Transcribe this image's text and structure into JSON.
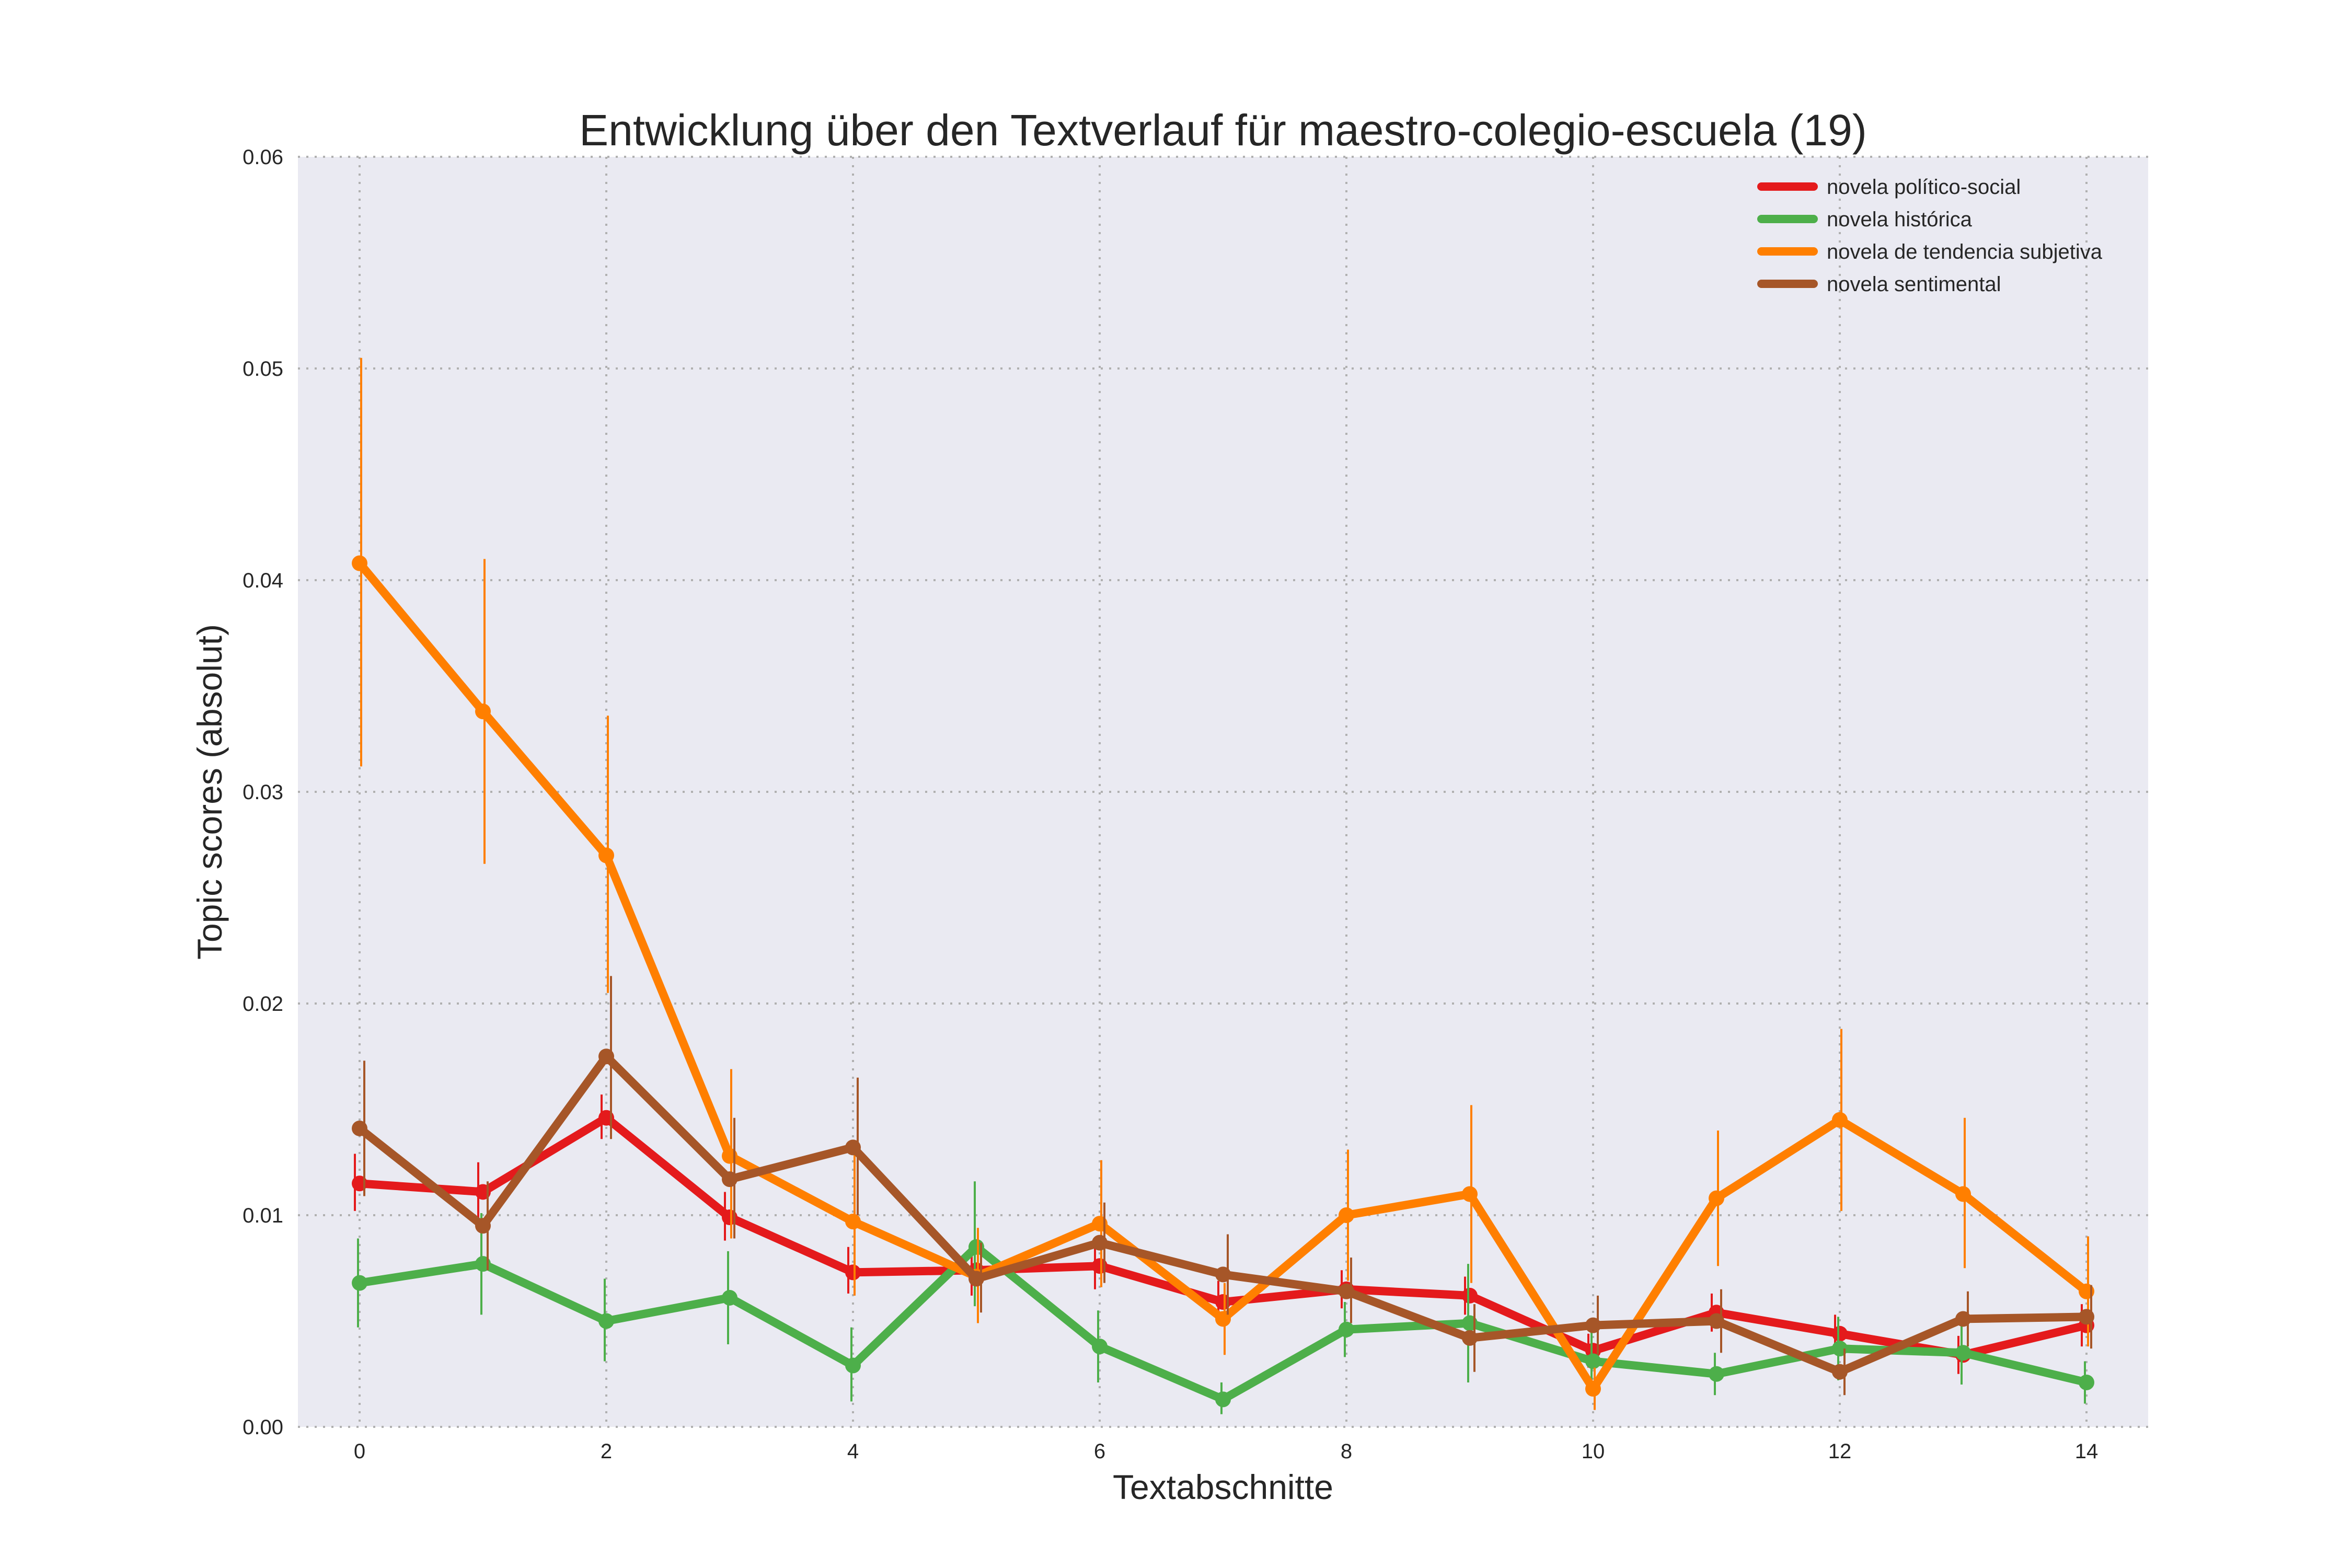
{
  "chart_data": {
    "type": "line",
    "title": "Entwicklung über den Textverlauf für maestro-colegio-escuela (19)",
    "xlabel": "Textabschnitte",
    "ylabel": "Topic scores (absolut)",
    "xlim": [
      -0.5,
      14.5
    ],
    "ylim": [
      0,
      0.06
    ],
    "x": [
      0,
      1,
      2,
      3,
      4,
      5,
      6,
      7,
      8,
      9,
      10,
      11,
      12,
      13,
      14
    ],
    "x_ticks": [
      0,
      2,
      4,
      6,
      8,
      10,
      12,
      14
    ],
    "x_tick_labels": [
      "0",
      "2",
      "4",
      "6",
      "8",
      "10",
      "12",
      "14"
    ],
    "y_ticks": [
      0,
      0.01,
      0.02,
      0.03,
      0.04,
      0.05,
      0.06
    ],
    "y_tick_labels": [
      "0.00",
      "0.01",
      "0.02",
      "0.03",
      "0.04",
      "0.05",
      "0.06"
    ],
    "grid": true,
    "legend_position": "top-right",
    "series": [
      {
        "name": "novela político-social",
        "color": "#e41a1c",
        "values": [
          0.0115,
          0.0111,
          0.0146,
          0.0099,
          0.0073,
          0.0074,
          0.0076,
          0.0059,
          0.0065,
          0.0062,
          0.0036,
          0.0054,
          0.0044,
          0.0034,
          0.0048
        ],
        "err_low": [
          0.0102,
          0.0097,
          0.0136,
          0.0088,
          0.0063,
          0.0062,
          0.0065,
          0.0049,
          0.0056,
          0.0053,
          0.0028,
          0.0045,
          0.0036,
          0.0025,
          0.0038
        ],
        "err_high": [
          0.0129,
          0.0125,
          0.0157,
          0.0111,
          0.0085,
          0.0087,
          0.0088,
          0.0069,
          0.0074,
          0.0071,
          0.0044,
          0.0063,
          0.0053,
          0.0043,
          0.0058
        ]
      },
      {
        "name": "novela histórica",
        "color": "#4daf4a",
        "values": [
          0.0068,
          0.0077,
          0.005,
          0.0061,
          0.0029,
          0.0085,
          0.0038,
          0.0013,
          0.0046,
          0.0049,
          0.0031,
          0.0025,
          0.0037,
          0.0035,
          0.0021
        ],
        "err_low": [
          0.0047,
          0.0053,
          0.0031,
          0.0039,
          0.0012,
          0.0057,
          0.0021,
          0.0006,
          0.0033,
          0.0021,
          0.0016,
          0.0015,
          0.0022,
          0.002,
          0.0011
        ],
        "err_high": [
          0.0089,
          0.0101,
          0.007,
          0.0083,
          0.0047,
          0.0116,
          0.0055,
          0.0021,
          0.0059,
          0.0077,
          0.0046,
          0.0035,
          0.0052,
          0.005,
          0.0031
        ]
      },
      {
        "name": "novela de tendencia subjetiva",
        "color": "#ff7f00",
        "values": [
          0.0408,
          0.0338,
          0.027,
          0.0128,
          0.0097,
          0.0071,
          0.0096,
          0.0051,
          0.01,
          0.011,
          0.0018,
          0.0108,
          0.0145,
          0.011,
          0.0064
        ],
        "err_low": [
          0.0312,
          0.0266,
          0.0205,
          0.0089,
          0.0062,
          0.0049,
          0.0066,
          0.0034,
          0.0069,
          0.0068,
          0.0008,
          0.0076,
          0.0102,
          0.0075,
          0.0038
        ],
        "err_high": [
          0.0505,
          0.041,
          0.0336,
          0.0169,
          0.0133,
          0.0094,
          0.0126,
          0.0068,
          0.0131,
          0.0152,
          0.0028,
          0.014,
          0.0188,
          0.0146,
          0.009
        ]
      },
      {
        "name": "novela sentimental",
        "color": "#a65628",
        "values": [
          0.0141,
          0.0095,
          0.0175,
          0.0117,
          0.0132,
          0.007,
          0.0087,
          0.0072,
          0.0064,
          0.0042,
          0.0048,
          0.005,
          0.0026,
          0.0051,
          0.0052
        ],
        "err_low": [
          0.0109,
          0.0074,
          0.0136,
          0.0089,
          0.01,
          0.0054,
          0.0068,
          0.0053,
          0.0049,
          0.0026,
          0.0034,
          0.0035,
          0.0015,
          0.0038,
          0.0037
        ],
        "err_high": [
          0.0173,
          0.0116,
          0.0213,
          0.0146,
          0.0165,
          0.0087,
          0.0106,
          0.0091,
          0.008,
          0.0058,
          0.0062,
          0.0065,
          0.0037,
          0.0064,
          0.0067
        ]
      }
    ]
  }
}
